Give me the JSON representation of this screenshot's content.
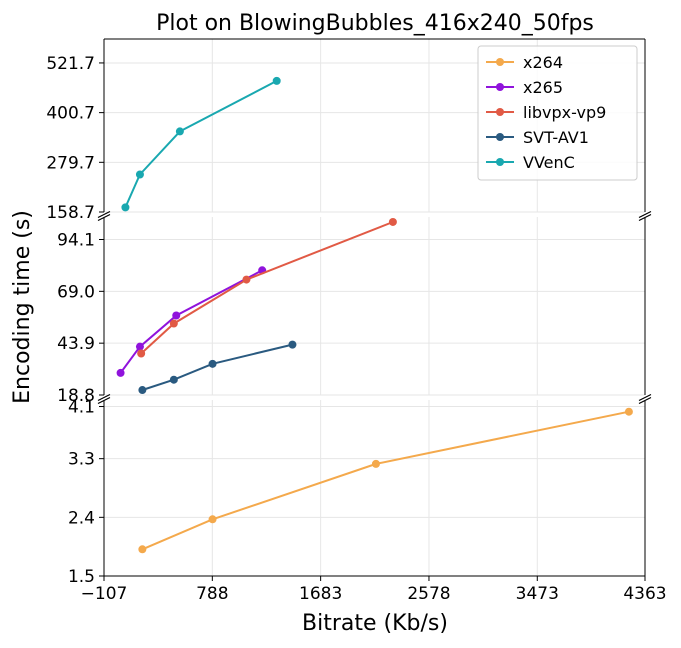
{
  "chart_data": {
    "type": "line",
    "title": "Plot on BlowingBubbles_416x240_50fps",
    "xlabel": "Bitrate (Kb/s)",
    "ylabel": "Encoding time (s)",
    "xlim": [
      -107,
      4363
    ],
    "x_ticks": [
      "−107",
      "788",
      "1683",
      "2578",
      "3473",
      "4363"
    ],
    "x_tick_values": [
      -107,
      788,
      1683,
      2578,
      3473,
      4363
    ],
    "broken_y_axis": true,
    "grid": true,
    "legend_position": "top-right",
    "panels": [
      {
        "ylim": [
          158.7,
          580
        ],
        "y_ticks": [
          "158.7",
          "279.7",
          "400.7",
          "521.7"
        ],
        "y_tick_values": [
          158.7,
          279.7,
          400.7,
          521.7
        ]
      },
      {
        "ylim": [
          18.8,
          105
        ],
        "y_ticks": [
          "18.8",
          "43.9",
          "69.0",
          "94.1"
        ],
        "y_tick_values": [
          18.8,
          43.9,
          69.0,
          94.1
        ]
      },
      {
        "ylim": [
          1.5,
          4.2
        ],
        "y_ticks": [
          "1.5",
          "2.4",
          "3.3",
          "4.1"
        ],
        "y_tick_values": [
          1.5,
          2.4,
          3.3,
          4.1
        ]
      }
    ],
    "series": [
      {
        "name": "x264",
        "color": "#f4a94c",
        "panel": 2,
        "x": [
          210,
          790,
          2140,
          4230
        ],
        "y": [
          1.91,
          2.37,
          3.22,
          4.02
        ]
      },
      {
        "name": "x265",
        "color": "#9013dc",
        "panel": 1,
        "x": [
          30,
          190,
          490,
          1200
        ],
        "y": [
          29.5,
          42.2,
          57.3,
          79.2
        ]
      },
      {
        "name": "libvpx-vp9",
        "color": "#e15a45",
        "panel": 1,
        "x": [
          200,
          470,
          1070,
          2280
        ],
        "y": [
          38.9,
          53.4,
          74.7,
          102.6
        ]
      },
      {
        "name": "SVT-AV1",
        "color": "#2a5a80",
        "panel": 1,
        "x": [
          210,
          470,
          790,
          1450
        ],
        "y": [
          21.2,
          26.2,
          33.9,
          43.2
        ]
      },
      {
        "name": "VVenC",
        "color": "#19a8b0",
        "panel": 0,
        "x": [
          70,
          190,
          520,
          1320
        ],
        "y": [
          170,
          250,
          355,
          478
        ]
      }
    ]
  }
}
